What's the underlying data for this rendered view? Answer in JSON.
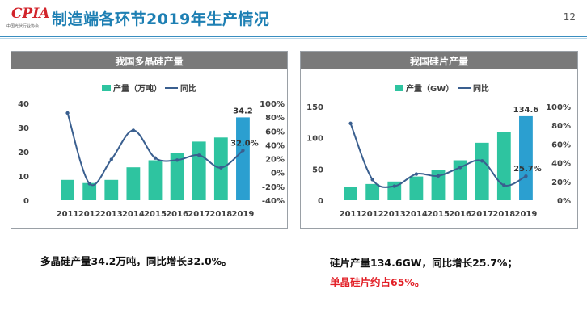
{
  "header": {
    "logo_text": "CPIA",
    "logo_sub": "中国光伏行业协会",
    "title": "制造端各环节2019年生产情况",
    "page_number": "12"
  },
  "colors": {
    "bar": "#2ec4a0",
    "highlight_bar": "#2b9fd0",
    "line": "#3a5f8f",
    "title_blue": "#1d7fb3",
    "red": "#e21f26"
  },
  "chart_data": [
    {
      "type": "bar",
      "title": "我国多晶硅产量",
      "legend": {
        "bar_label": "产量（万吨）",
        "line_label": "同比"
      },
      "categories": [
        "2011",
        "2012",
        "2013",
        "2014",
        "2015",
        "2016",
        "2017",
        "2018",
        "2019"
      ],
      "series": [
        {
          "name": "产量（万吨）",
          "type": "bar",
          "axis": "left",
          "values": [
            8.4,
            7.1,
            8.4,
            13.6,
            16.5,
            19.4,
            24.2,
            25.9,
            34.2
          ]
        },
        {
          "name": "同比",
          "type": "line",
          "axis": "right",
          "values": [
            86,
            -16,
            19,
            61,
            21,
            18,
            25,
            7,
            32
          ]
        }
      ],
      "y_left": {
        "min": 0,
        "max": 40,
        "ticks": [
          "0",
          "10",
          "20",
          "30",
          "40"
        ]
      },
      "y_right": {
        "min": -40,
        "max": 100,
        "ticks": [
          "-40%",
          "-20%",
          "0%",
          "20%",
          "40%",
          "60%",
          "80%",
          "100%"
        ]
      },
      "data_labels": {
        "bar_last": "34.2",
        "line_last": "32.0%"
      }
    },
    {
      "type": "bar",
      "title": "我国硅片产量",
      "legend": {
        "bar_label": "产量（GW）",
        "line_label": "同比"
      },
      "categories": [
        "2011",
        "2012",
        "2013",
        "2014",
        "2015",
        "2016",
        "2017",
        "2018",
        "2019"
      ],
      "series": [
        {
          "name": "产量（GW）",
          "type": "bar",
          "axis": "left",
          "values": [
            21,
            26,
            30,
            38,
            48,
            64,
            92,
            109,
            134.6
          ]
        },
        {
          "name": "同比",
          "type": "line",
          "axis": "right",
          "values": [
            82,
            22,
            15,
            28,
            26,
            35,
            42,
            16,
            25.7
          ]
        }
      ],
      "y_left": {
        "min": 0,
        "max": 150,
        "ticks": [
          "0",
          "50",
          "100",
          "150"
        ]
      },
      "y_right": {
        "min": 0,
        "max": 100,
        "ticks": [
          "0%",
          "20%",
          "40%",
          "60%",
          "80%",
          "100%"
        ]
      },
      "data_labels": {
        "bar_last": "134.6",
        "line_last": "25.7%"
      }
    }
  ],
  "notes": {
    "left": "多晶硅产量34.2万吨，同比增长32.0%。",
    "right_1": "硅片产量134.6GW，同比增长25.7%；",
    "right_2": "单晶硅片约占65%。"
  }
}
